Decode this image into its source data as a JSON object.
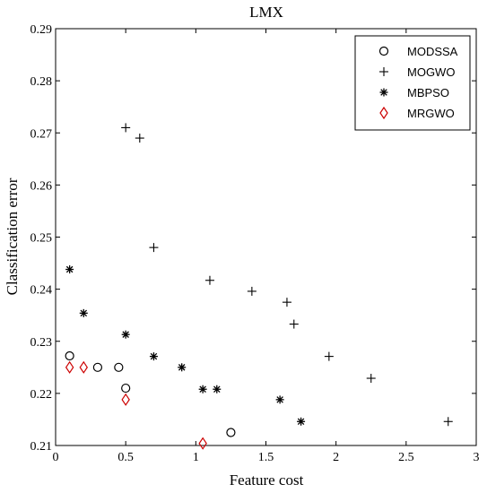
{
  "chart_data": {
    "type": "scatter",
    "title": "LMX",
    "xlabel": "Feature cost",
    "ylabel": "Classification error",
    "xlim": [
      0,
      3
    ],
    "ylim": [
      0.21,
      0.29
    ],
    "xticks": [
      "0",
      "0.5",
      "1",
      "1.5",
      "2",
      "2.5",
      "3"
    ],
    "xtick_values": [
      0,
      0.5,
      1,
      1.5,
      2,
      2.5,
      3
    ],
    "yticks": [
      "0.21",
      "0.22",
      "0.23",
      "0.24",
      "0.25",
      "0.26",
      "0.27",
      "0.28",
      "0.29"
    ],
    "ytick_values": [
      0.21,
      0.22,
      0.23,
      0.24,
      0.25,
      0.26,
      0.27,
      0.28,
      0.29
    ],
    "grid": false,
    "legend_position": "top-right",
    "series": [
      {
        "name": "MODSSA",
        "marker": "circle",
        "color": "#000000",
        "points": [
          [
            0.1,
            0.2272
          ],
          [
            0.3,
            0.225
          ],
          [
            0.45,
            0.225
          ],
          [
            0.5,
            0.221
          ],
          [
            1.25,
            0.2125
          ]
        ]
      },
      {
        "name": "MOGWO",
        "marker": "plus",
        "color": "#000000",
        "points": [
          [
            0.5,
            0.271
          ],
          [
            0.6,
            0.269
          ],
          [
            0.7,
            0.248
          ],
          [
            1.1,
            0.2417
          ],
          [
            1.4,
            0.2396
          ],
          [
            1.65,
            0.2375
          ],
          [
            1.7,
            0.2333
          ],
          [
            1.95,
            0.2271
          ],
          [
            2.25,
            0.2229
          ],
          [
            2.8,
            0.2146
          ]
        ]
      },
      {
        "name": "MBPSO",
        "marker": "asterisk",
        "color": "#000000",
        "points": [
          [
            0.1,
            0.2438
          ],
          [
            0.2,
            0.2354
          ],
          [
            0.5,
            0.2313
          ],
          [
            0.7,
            0.2271
          ],
          [
            0.9,
            0.225
          ],
          [
            1.05,
            0.2208
          ],
          [
            1.15,
            0.2208
          ],
          [
            1.6,
            0.2188
          ],
          [
            1.75,
            0.2146
          ]
        ]
      },
      {
        "name": "MRGWO",
        "marker": "diamond",
        "color": "#cc0000",
        "points": [
          [
            0.1,
            0.225
          ],
          [
            0.2,
            0.225
          ],
          [
            0.5,
            0.2188
          ],
          [
            1.05,
            0.2104
          ]
        ]
      }
    ]
  }
}
